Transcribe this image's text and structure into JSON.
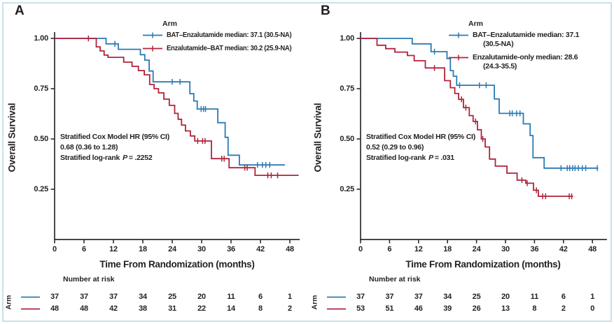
{
  "figure": {
    "background": "#ffffff",
    "frame_color": "#c8e1ea",
    "text_color": "#231f20"
  },
  "chart_data": [
    {
      "type": "line",
      "subtype": "kaplan-meier-step",
      "panel_label": "A",
      "xlabel": "Time From Randomization (months)",
      "ylabel": "Overall Survival",
      "xlim": [
        0,
        50
      ],
      "ylim": [
        0,
        1.0
      ],
      "x_ticks": [
        0,
        6,
        12,
        18,
        24,
        30,
        36,
        42,
        48
      ],
      "y_ticks": [
        "1.00",
        "0.75",
        "0.50",
        "0.25"
      ],
      "y_tick_values": [
        1.0,
        0.75,
        0.5,
        0.25
      ],
      "grid": false,
      "legend": {
        "title": "Arm",
        "position": "top-right"
      },
      "stats": {
        "line1": "Stratified Cox Model HR (95% CI)",
        "line2": "0.68 (0.36 to 1.28)",
        "logrank_prefix": "Stratified log-rank",
        "p_label": "P",
        "p_value": "= .2252"
      },
      "series": [
        {
          "name": "BAT–Enzalutamide",
          "median": "37.1 (30.5-NA)",
          "legend_lines": [
            "BAT–Enzalutamide median: 37.1 (30.5-NA)"
          ],
          "color": "#2a7ab4",
          "steps": [
            [
              0,
              1.0
            ],
            [
              10.5,
              0.973
            ],
            [
              13,
              0.946
            ],
            [
              17.5,
              0.919
            ],
            [
              18.4,
              0.892
            ],
            [
              19.3,
              0.838
            ],
            [
              20.1,
              0.784
            ],
            [
              27.6,
              0.725
            ],
            [
              28.4,
              0.689
            ],
            [
              29.1,
              0.649
            ],
            [
              33.3,
              0.581
            ],
            [
              34.8,
              0.508
            ],
            [
              35.4,
              0.419
            ],
            [
              37.7,
              0.371
            ],
            [
              47,
              0.371
            ]
          ],
          "censors": [
            [
              12.3,
              0.973
            ],
            [
              24,
              0.784
            ],
            [
              25.6,
              0.784
            ],
            [
              29.9,
              0.649
            ],
            [
              30.4,
              0.649
            ],
            [
              30.8,
              0.649
            ],
            [
              41.4,
              0.371
            ],
            [
              42.4,
              0.371
            ],
            [
              43.1,
              0.371
            ],
            [
              43.9,
              0.371
            ]
          ]
        },
        {
          "name": "Enzalutamide–BAT",
          "median": "30.2 (25.9-NA)",
          "legend_lines": [
            "Enzalutamide–BAT median: 30.2 (25.9-NA)"
          ],
          "color": "#b0233a",
          "steps": [
            [
              0,
              1.0
            ],
            [
              8.5,
              0.958
            ],
            [
              9.3,
              0.938
            ],
            [
              10.1,
              0.917
            ],
            [
              10.9,
              0.906
            ],
            [
              14.1,
              0.882
            ],
            [
              15.8,
              0.861
            ],
            [
              17.1,
              0.84
            ],
            [
              18.3,
              0.819
            ],
            [
              19.4,
              0.771
            ],
            [
              20.3,
              0.75
            ],
            [
              21.2,
              0.729
            ],
            [
              22.3,
              0.698
            ],
            [
              23.4,
              0.667
            ],
            [
              24.5,
              0.627
            ],
            [
              25.2,
              0.598
            ],
            [
              25.9,
              0.569
            ],
            [
              26.7,
              0.54
            ],
            [
              27.7,
              0.515
            ],
            [
              28.6,
              0.49
            ],
            [
              32,
              0.402
            ],
            [
              35.6,
              0.357
            ],
            [
              40.9,
              0.319
            ],
            [
              49.8,
              0.319
            ]
          ],
          "censors": [
            [
              6.9,
              1.0
            ],
            [
              29.2,
              0.49
            ],
            [
              30.2,
              0.49
            ],
            [
              30.7,
              0.49
            ],
            [
              34.1,
              0.402
            ],
            [
              34.6,
              0.402
            ],
            [
              38.8,
              0.357
            ],
            [
              39.3,
              0.357
            ],
            [
              43.5,
              0.319
            ],
            [
              44.2,
              0.319
            ],
            [
              45.5,
              0.319
            ]
          ]
        }
      ],
      "number_at_risk": {
        "title": "Number at risk",
        "axis_label": "Arm",
        "rows": [
          {
            "series": "BAT–Enzalutamide",
            "values": [
              37,
              37,
              37,
              34,
              25,
              20,
              11,
              6,
              1
            ]
          },
          {
            "series": "Enzalutamide–BAT",
            "values": [
              48,
              48,
              42,
              38,
              31,
              22,
              14,
              8,
              2
            ]
          }
        ]
      }
    },
    {
      "type": "line",
      "subtype": "kaplan-meier-step",
      "panel_label": "B",
      "xlabel": "Time From Randomization (months)",
      "ylabel": "Overall Survival",
      "xlim": [
        0,
        51
      ],
      "ylim": [
        0,
        1.0
      ],
      "x_ticks": [
        0,
        6,
        12,
        18,
        24,
        30,
        36,
        42,
        48
      ],
      "y_ticks": [
        "1.00",
        "0.75",
        "0.50",
        "0.25"
      ],
      "y_tick_values": [
        1.0,
        0.75,
        0.5,
        0.25
      ],
      "grid": false,
      "legend": {
        "title": "Arm",
        "position": "top-right"
      },
      "stats": {
        "line1": "Stratified Cox Model HR (95% CI)",
        "line2": "0.52 (0.29 to 0.96)",
        "logrank_prefix": "Stratified log-rank",
        "p_label": "P",
        "p_value": "= .031"
      },
      "series": [
        {
          "name": "BAT–Enzalutamide",
          "median": "37.1 (30.5-NA)",
          "legend_lines": [
            "BAT–Enzalutamide median: 37.1",
            "(30.5-NA)"
          ],
          "color": "#2a7ab4",
          "steps": [
            [
              0,
              1.0
            ],
            [
              10.7,
              0.973
            ],
            [
              14.6,
              0.934
            ],
            [
              17.9,
              0.9
            ],
            [
              18.6,
              0.84
            ],
            [
              19.2,
              0.812
            ],
            [
              19.9,
              0.767
            ],
            [
              27.7,
              0.699
            ],
            [
              28.7,
              0.627
            ],
            [
              33.7,
              0.575
            ],
            [
              35.1,
              0.517
            ],
            [
              35.7,
              0.407
            ],
            [
              38,
              0.355
            ],
            [
              49.2,
              0.355
            ]
          ],
          "censors": [
            [
              15.3,
              0.934
            ],
            [
              20.5,
              0.767
            ],
            [
              24.6,
              0.767
            ],
            [
              26,
              0.767
            ],
            [
              30.9,
              0.627
            ],
            [
              31.4,
              0.627
            ],
            [
              32.3,
              0.627
            ],
            [
              33,
              0.627
            ],
            [
              41.5,
              0.355
            ],
            [
              42.8,
              0.355
            ],
            [
              43.3,
              0.355
            ],
            [
              43.9,
              0.355
            ],
            [
              44.4,
              0.355
            ],
            [
              45.1,
              0.355
            ],
            [
              45.9,
              0.355
            ],
            [
              46.6,
              0.355
            ],
            [
              49,
              0.355
            ]
          ]
        },
        {
          "name": "Enzalutamide-only",
          "median": "28.6 (24.3-35.5)",
          "legend_lines": [
            "Enzalutamide-only median: 28.6",
            "(24.3-35.5)"
          ],
          "color": "#b0233a",
          "steps": [
            [
              0,
              1.0
            ],
            [
              3.4,
              0.966
            ],
            [
              5.2,
              0.949
            ],
            [
              7.1,
              0.932
            ],
            [
              9.7,
              0.915
            ],
            [
              11.1,
              0.889
            ],
            [
              13.4,
              0.853
            ],
            [
              17.4,
              0.79
            ],
            [
              18.6,
              0.755
            ],
            [
              19.5,
              0.726
            ],
            [
              20.3,
              0.697
            ],
            [
              21.3,
              0.656
            ],
            [
              22.5,
              0.616
            ],
            [
              23.3,
              0.587
            ],
            [
              24.2,
              0.546
            ],
            [
              25,
              0.5
            ],
            [
              25.8,
              0.46
            ],
            [
              26.7,
              0.4
            ],
            [
              27.9,
              0.365
            ],
            [
              30.3,
              0.33
            ],
            [
              32.4,
              0.295
            ],
            [
              34.2,
              0.28
            ],
            [
              35.8,
              0.245
            ],
            [
              36.8,
              0.215
            ],
            [
              44,
              0.215
            ]
          ],
          "censors": [
            [
              15.3,
              0.853
            ],
            [
              20.9,
              0.697
            ],
            [
              21.8,
              0.656
            ],
            [
              23.8,
              0.587
            ],
            [
              25.3,
              0.5
            ],
            [
              33.4,
              0.295
            ],
            [
              34.5,
              0.28
            ],
            [
              36.4,
              0.245
            ],
            [
              37.7,
              0.215
            ],
            [
              38.3,
              0.215
            ],
            [
              43.2,
              0.215
            ],
            [
              43.7,
              0.215
            ]
          ]
        }
      ],
      "number_at_risk": {
        "title": "Number at risk",
        "axis_label": "Arm",
        "rows": [
          {
            "series": "BAT–Enzalutamide",
            "values": [
              37,
              37,
              37,
              34,
              25,
              20,
              11,
              6,
              1
            ]
          },
          {
            "series": "Enzalutamide-only",
            "values": [
              53,
              51,
              46,
              39,
              26,
              13,
              8,
              2,
              0
            ]
          }
        ]
      }
    }
  ]
}
